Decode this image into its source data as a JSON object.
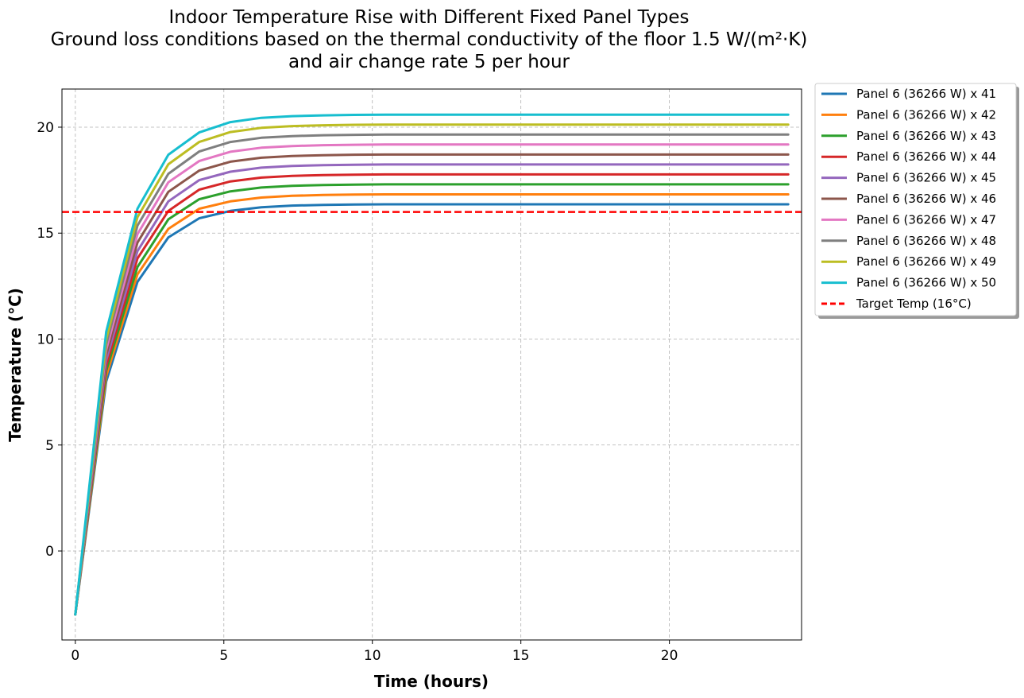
{
  "chart_data": {
    "type": "line",
    "title_lines": [
      "Indoor Temperature Rise with Different Fixed Panel Types",
      "Ground loss conditions based on the thermal conductivity of the floor 1.5 W/(m²·K)",
      "and air change rate 5 per hour"
    ],
    "xlabel": "Time (hours)",
    "ylabel": "Temperature (°C)",
    "xlim": [
      -0.45,
      24.45
    ],
    "ylim": [
      -4.2,
      21.8
    ],
    "xticks": [
      0,
      5,
      10,
      15,
      20
    ],
    "yticks": [
      0,
      5,
      10,
      15,
      20
    ],
    "grid": true,
    "legend_position": "outside upper right",
    "x": [
      0,
      1.04,
      2.09,
      3.13,
      4.17,
      5.22,
      6.26,
      7.3,
      8.35,
      9.39,
      10.43,
      11.48,
      12.52,
      13.57,
      14.61,
      15.65,
      16.7,
      17.74,
      18.78,
      19.83,
      20.87,
      21.91,
      22.96,
      24
    ],
    "series": [
      {
        "name": "Panel 6 (36266 W) x 41",
        "color": "#1f77b4",
        "values": [
          -3,
          8.0,
          12.7,
          14.8,
          15.7,
          16.05,
          16.22,
          16.3,
          16.33,
          16.35,
          16.36,
          16.36,
          16.36,
          16.36,
          16.36,
          16.36,
          16.36,
          16.36,
          16.36,
          16.36,
          16.36,
          16.36,
          16.36,
          16.36
        ]
      },
      {
        "name": "Panel 6 (36266 W) x 42",
        "color": "#ff7f0e",
        "values": [
          -3,
          8.25,
          13.05,
          15.2,
          16.15,
          16.5,
          16.68,
          16.76,
          16.8,
          16.82,
          16.83,
          16.83,
          16.83,
          16.83,
          16.83,
          16.83,
          16.83,
          16.83,
          16.83,
          16.83,
          16.83,
          16.83,
          16.83,
          16.83
        ]
      },
      {
        "name": "Panel 6 (36266 W) x 43",
        "color": "#2ca02c",
        "values": [
          -3,
          8.5,
          13.4,
          15.65,
          16.6,
          16.97,
          17.15,
          17.23,
          17.27,
          17.29,
          17.3,
          17.3,
          17.3,
          17.3,
          17.3,
          17.3,
          17.3,
          17.3,
          17.3,
          17.3,
          17.3,
          17.3,
          17.3,
          17.3
        ]
      },
      {
        "name": "Panel 6 (36266 W) x 44",
        "color": "#d62728",
        "values": [
          -3,
          8.75,
          13.8,
          16.05,
          17.05,
          17.44,
          17.62,
          17.7,
          17.74,
          17.76,
          17.77,
          17.77,
          17.77,
          17.77,
          17.77,
          17.77,
          17.77,
          17.77,
          17.77,
          17.77,
          17.77,
          17.77,
          17.77,
          17.77
        ]
      },
      {
        "name": "Panel 6 (36266 W) x 45",
        "color": "#9467bd",
        "values": [
          -3,
          9.0,
          14.15,
          16.5,
          17.5,
          17.9,
          18.09,
          18.17,
          18.21,
          18.23,
          18.24,
          18.24,
          18.24,
          18.24,
          18.24,
          18.24,
          18.24,
          18.24,
          18.24,
          18.24,
          18.24,
          18.24,
          18.24,
          18.24
        ]
      },
      {
        "name": "Panel 6 (36266 W) x 46",
        "color": "#8c564b",
        "values": [
          -3,
          9.25,
          14.55,
          16.95,
          17.95,
          18.37,
          18.56,
          18.64,
          18.68,
          18.7,
          18.71,
          18.71,
          18.71,
          18.71,
          18.71,
          18.71,
          18.71,
          18.71,
          18.71,
          18.71,
          18.71,
          18.71,
          18.71,
          18.71
        ]
      },
      {
        "name": "Panel 6 (36266 W) x 47",
        "color": "#e377c2",
        "values": [
          -3,
          9.5,
          14.95,
          17.4,
          18.4,
          18.84,
          19.03,
          19.11,
          19.15,
          19.17,
          19.18,
          19.18,
          19.18,
          19.18,
          19.18,
          19.18,
          19.18,
          19.18,
          19.18,
          19.18,
          19.18,
          19.18,
          19.18,
          19.18
        ]
      },
      {
        "name": "Panel 6 (36266 W) x 48",
        "color": "#7f7f7f",
        "values": [
          -3,
          9.75,
          15.35,
          17.8,
          18.85,
          19.3,
          19.5,
          19.58,
          19.62,
          19.64,
          19.65,
          19.65,
          19.65,
          19.65,
          19.65,
          19.65,
          19.65,
          19.65,
          19.65,
          19.65,
          19.65,
          19.65,
          19.65,
          19.65
        ]
      },
      {
        "name": "Panel 6 (36266 W) x 49",
        "color": "#bcbd22",
        "values": [
          -3,
          10.0,
          15.75,
          18.25,
          19.3,
          19.77,
          19.97,
          20.05,
          20.09,
          20.11,
          20.12,
          20.12,
          20.12,
          20.12,
          20.12,
          20.12,
          20.12,
          20.12,
          20.12,
          20.12,
          20.12,
          20.12,
          20.12,
          20.12
        ]
      },
      {
        "name": "Panel 6 (36266 W) x 50",
        "color": "#17becf",
        "values": [
          -3,
          10.35,
          16.15,
          18.7,
          19.75,
          20.24,
          20.44,
          20.52,
          20.56,
          20.58,
          20.59,
          20.59,
          20.59,
          20.59,
          20.59,
          20.59,
          20.59,
          20.59,
          20.59,
          20.59,
          20.59,
          20.59,
          20.59,
          20.59
        ]
      }
    ],
    "reference_line": {
      "name": "Target Temp (16°C)",
      "y": 16,
      "color": "#ff0000",
      "style": "dashed"
    }
  }
}
